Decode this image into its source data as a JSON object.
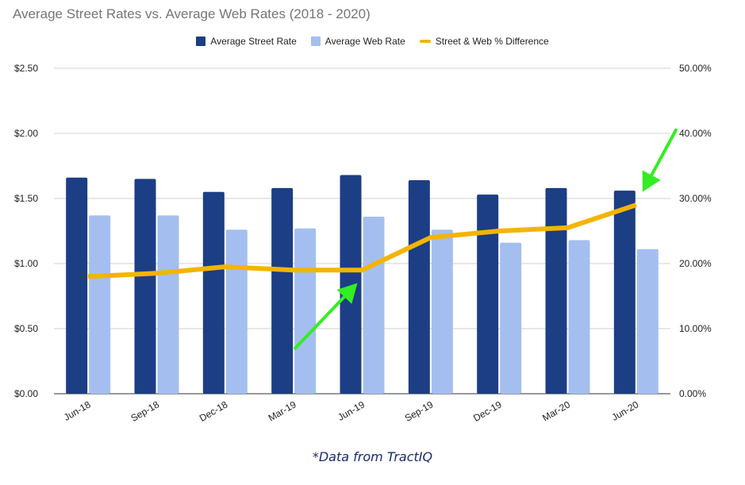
{
  "chart_data": {
    "type": "bar",
    "title": "Average Street Rates vs. Average Web Rates (2018 - 2020)",
    "categories": [
      "Jun-18",
      "Sep-18",
      "Dec-18",
      "Mar-19",
      "Jun-19",
      "Sep-19",
      "Dec-19",
      "Mar-20",
      "Jun-20"
    ],
    "series": [
      {
        "name": "Average Street Rate",
        "type": "bar",
        "axis": "left",
        "color": "#1c3e84",
        "values": [
          1.66,
          1.65,
          1.55,
          1.58,
          1.68,
          1.64,
          1.53,
          1.58,
          1.56
        ]
      },
      {
        "name": "Average Web Rate",
        "type": "bar",
        "axis": "left",
        "color": "#a4bfef",
        "values": [
          1.37,
          1.37,
          1.26,
          1.27,
          1.36,
          1.26,
          1.16,
          1.18,
          1.11
        ]
      },
      {
        "name": "Street & Web % Difference",
        "type": "line",
        "axis": "right",
        "color": "#f4b400",
        "values": [
          18.0,
          18.5,
          19.5,
          19.0,
          19.0,
          24.0,
          25.0,
          25.5,
          29.0
        ]
      }
    ],
    "y_left": {
      "min": 0,
      "max": 2.5,
      "ticks": [
        "$0.00",
        "$0.50",
        "$1.00",
        "$1.50",
        "$2.00",
        "$2.50"
      ]
    },
    "y_right": {
      "min": 0,
      "max": 50,
      "ticks": [
        "0.00%",
        "10.00%",
        "20.00%",
        "30.00%",
        "40.00%",
        "50.00%"
      ]
    },
    "grid": true,
    "legend_position": "top-center",
    "annotations": [
      {
        "type": "arrow",
        "color": "#33ee22",
        "from": {
          "category": "Mar-19",
          "y_right": 7
        },
        "to": {
          "category": "Jun-19",
          "y_right": 17
        }
      },
      {
        "type": "arrow",
        "color": "#33ee22",
        "from": {
          "category": "Jun-20",
          "y_right": 40.5
        },
        "to": {
          "category": "Jun-20",
          "y_right": 31
        }
      }
    ]
  },
  "footnote": "*Data from TractIQ"
}
